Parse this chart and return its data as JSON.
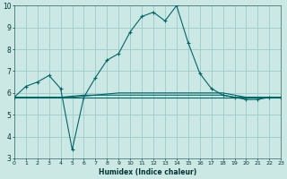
{
  "xlabel": "Humidex (Indice chaleur)",
  "bg_color": "#cce8e4",
  "grid_color": "#99cccc",
  "line_color": "#006666",
  "x": [
    0,
    1,
    2,
    3,
    4,
    5,
    6,
    7,
    8,
    9,
    10,
    11,
    12,
    13,
    14,
    15,
    16,
    17,
    18,
    19,
    20,
    21,
    22,
    23
  ],
  "series1": [
    5.8,
    6.3,
    6.5,
    6.8,
    6.2,
    3.4,
    5.8,
    6.7,
    7.5,
    7.8,
    8.8,
    9.5,
    9.7,
    9.3,
    10.0,
    8.3,
    6.9,
    6.2,
    5.9,
    5.8,
    5.7,
    5.7,
    5.8,
    5.8
  ],
  "series2": [
    5.8,
    5.8,
    5.8,
    5.8,
    5.8,
    5.8,
    5.8,
    5.8,
    5.8,
    5.8,
    5.8,
    5.8,
    5.8,
    5.8,
    5.8,
    5.8,
    5.8,
    5.8,
    5.8,
    5.8,
    5.8,
    5.8,
    5.8,
    5.8
  ],
  "series3": [
    5.8,
    5.8,
    5.8,
    5.8,
    5.8,
    5.85,
    5.9,
    5.9,
    5.9,
    5.9,
    5.9,
    5.9,
    5.9,
    5.9,
    5.9,
    5.9,
    5.9,
    5.9,
    5.9,
    5.8,
    5.8,
    5.8,
    5.8,
    5.8
  ],
  "series4": [
    5.8,
    5.8,
    5.8,
    5.8,
    5.8,
    5.8,
    5.85,
    5.9,
    5.95,
    6.0,
    6.0,
    6.0,
    6.0,
    6.0,
    6.0,
    6.0,
    6.0,
    6.0,
    6.0,
    5.9,
    5.8,
    5.8,
    5.8,
    5.8
  ],
  "ylim": [
    3,
    10
  ],
  "xlim": [
    0,
    23
  ],
  "yticks": [
    3,
    4,
    5,
    6,
    7,
    8,
    9,
    10
  ],
  "xtick_fontsize": 4.5,
  "ytick_fontsize": 5.5,
  "xlabel_fontsize": 5.5,
  "line_width": 0.8,
  "marker_size": 3.0
}
